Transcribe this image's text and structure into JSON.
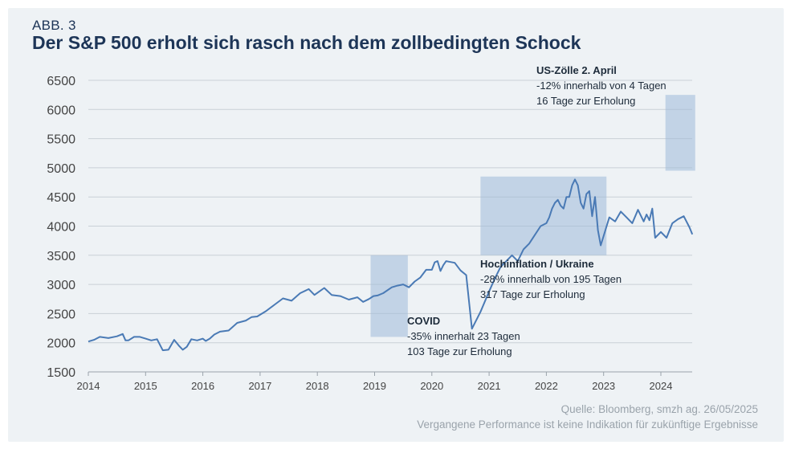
{
  "header": {
    "figure_label": "ABB. 3",
    "title": "Der S&P 500 erholt sich rasch nach dem zollbedingten Schock"
  },
  "footer": {
    "source": "Quelle: Bloomberg, smzh ag. 26/05/2025",
    "disclaimer": "Vergangene Performance ist keine Indikation für zukünftige Ergebnisse"
  },
  "colors": {
    "line": "#4a7ab5",
    "shade": "#9fb9d8",
    "grid": "#c9d0d6",
    "title": "#1d3557"
  },
  "chart_data": {
    "type": "line",
    "title": "Der S&P 500 erholt sich rasch nach dem zollbedingten Schock",
    "xlabel": "",
    "ylabel": "",
    "xlim": [
      2014,
      2024.55
    ],
    "ylim": [
      1500,
      6500
    ],
    "grid": "horizontal",
    "x_ticks": [
      2014,
      2015,
      2016,
      2017,
      2018,
      2019,
      2020,
      2021,
      2022,
      2023,
      2024
    ],
    "y_ticks": [
      1500,
      2000,
      2500,
      3000,
      3500,
      4000,
      4500,
      5000,
      5500,
      6000,
      6500
    ],
    "series": [
      {
        "x": [
          2014.0,
          2014.1,
          2014.2,
          2014.35,
          2014.5,
          2014.6,
          2014.65,
          2014.7,
          2014.8,
          2014.9,
          2015.0,
          2015.1,
          2015.2,
          2015.3,
          2015.4,
          2015.5,
          2015.58,
          2015.65,
          2015.72,
          2015.8,
          2015.9,
          2016.0,
          2016.05,
          2016.12,
          2016.2,
          2016.3,
          2016.45,
          2016.6,
          2016.75,
          2016.85,
          2016.95,
          2017.1,
          2017.25,
          2017.4,
          2017.55,
          2017.7,
          2017.85,
          2017.95,
          2018.05,
          2018.12,
          2018.25,
          2018.4,
          2018.55,
          2018.7,
          2018.8,
          2018.9,
          2018.98,
          2019.05,
          2019.15,
          2019.3,
          2019.4,
          2019.5,
          2019.6,
          2019.7,
          2019.8,
          2019.9,
          2020.0,
          2020.05,
          2020.1,
          2020.15,
          2020.2,
          2020.25,
          2020.3,
          2020.4,
          2020.5,
          2020.6,
          2020.7,
          2020.85,
          2021.0,
          2021.1,
          2021.2,
          2021.3,
          2021.4,
          2021.5,
          2021.6,
          2021.7,
          2021.8,
          2021.9,
          2022.0,
          2022.05,
          2022.1,
          2022.15,
          2022.2,
          2022.25,
          2022.3,
          2022.35,
          2022.4,
          2022.45,
          2022.5,
          2022.55,
          2022.6,
          2022.65,
          2022.7,
          2022.75,
          2022.8,
          2022.85,
          2022.9,
          2022.95,
          2023.0,
          2023.1,
          2023.2,
          2023.3,
          2023.4,
          2023.5,
          2023.6,
          2023.7,
          2023.75,
          2023.8,
          2023.85,
          2023.9,
          2024.0,
          2024.1,
          2024.2,
          2024.3,
          2024.4,
          2024.5,
          2024.55
        ],
        "values": [
          2020,
          2050,
          2100,
          2080,
          2110,
          2150,
          2040,
          2040,
          2100,
          2100,
          2070,
          2040,
          2060,
          1870,
          1880,
          2050,
          1950,
          1880,
          1930,
          2060,
          2040,
          2070,
          2030,
          2070,
          2140,
          2190,
          2210,
          2340,
          2380,
          2440,
          2450,
          2540,
          2650,
          2760,
          2720,
          2850,
          2920,
          2820,
          2890,
          2940,
          2820,
          2800,
          2740,
          2780,
          2700,
          2750,
          2800,
          2810,
          2850,
          2950,
          2980,
          3000,
          2950,
          3050,
          3120,
          3250,
          3250,
          3380,
          3400,
          3230,
          3330,
          3400,
          3390,
          3370,
          3240,
          3160,
          2240,
          2530,
          2880,
          3100,
          3300,
          3400,
          3500,
          3400,
          3600,
          3700,
          3850,
          4000,
          4050,
          4150,
          4300,
          4400,
          4450,
          4350,
          4300,
          4500,
          4500,
          4700,
          4800,
          4700,
          4400,
          4300,
          4550,
          4600,
          4170,
          4500,
          3930,
          3670,
          3830,
          4150,
          4080,
          4250,
          4150,
          4050,
          4280,
          4080,
          4200,
          4100,
          4300,
          3800,
          3900,
          3800,
          4050,
          4120,
          4170,
          3980,
          3860
        ]
      }
    ],
    "annotations": [
      {
        "title": "COVID",
        "lines": [
          "-35% innerhalt 23 Tagen",
          "103 Tage zur Erholung"
        ],
        "x_range": [
          2018.93,
          2019.58
        ],
        "y_range": [
          2100,
          3500
        ]
      },
      {
        "title": "Hochinflation / Ukraine",
        "lines": [
          "-28% innerhalb von 195 Tagen",
          "317 Tage zur Erholung"
        ],
        "x_range": [
          2020.85,
          2023.05
        ],
        "y_range": [
          3500,
          4850
        ]
      },
      {
        "title": "US-Zölle 2. April",
        "lines": [
          "-12% innerhalb von 4 Tagen",
          "16 Tage zur Erholung"
        ],
        "x_range": [
          2024.08,
          2024.6
        ],
        "y_range": [
          4950,
          6250
        ]
      }
    ]
  }
}
